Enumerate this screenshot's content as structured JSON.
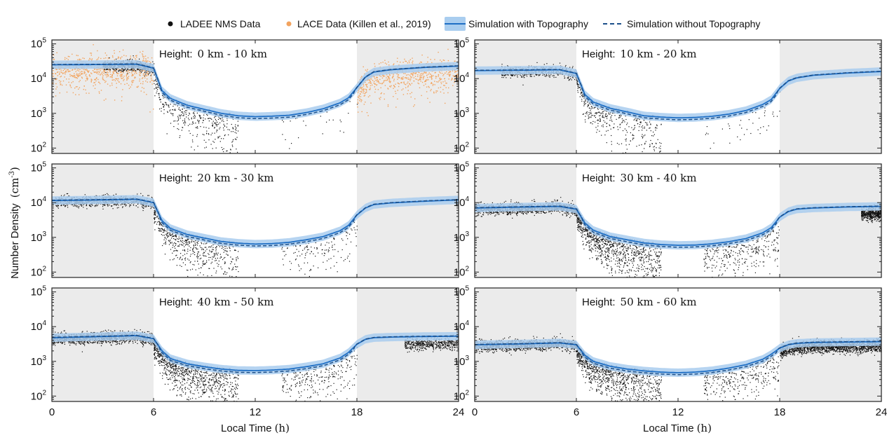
{
  "chart_data": {
    "type": "scatter+line",
    "legend": [
      {
        "name": "LADEE NMS Data",
        "kind": "marker",
        "color": "#111111"
      },
      {
        "name": "LACE Data (Killen et al., 2019)",
        "kind": "marker",
        "color": "#f2a35e"
      },
      {
        "name": "Simulation with Topography",
        "kind": "band+line",
        "color": "#1f6fc5",
        "band_color": "#a9cdef"
      },
      {
        "name": "Simulation without Topography",
        "kind": "dashed-line",
        "color": "#1b4f8a"
      }
    ],
    "xlabel_main": "Local Time",
    "xlabel_unit": "(h)",
    "xticks": [
      "0",
      "6",
      "12",
      "18",
      "24"
    ],
    "xlim": [
      0,
      24
    ],
    "ylabel_main": "Number Density",
    "ylabel_unit": "(cm",
    "ylabel_exp": "-3",
    "ylabel_close": ")",
    "yscale": "log",
    "ylim": [
      70,
      130000
    ],
    "yticks": [
      {
        "base": "10",
        "exp": "2"
      },
      {
        "base": "10",
        "exp": "3"
      },
      {
        "base": "10",
        "exp": "4"
      },
      {
        "base": "10",
        "exp": "5"
      }
    ],
    "night_shading": [
      [
        0,
        6
      ],
      [
        18,
        24
      ]
    ],
    "shading_color": "#ebebeb",
    "panel_title_prefix": "Height:",
    "panels": [
      {
        "id": "0-10",
        "range": "0 km - 10 km",
        "sim_with": [
          [
            0,
            25000
          ],
          [
            3,
            25500
          ],
          [
            5,
            26000
          ],
          [
            6,
            20000
          ],
          [
            6.5,
            4500
          ],
          [
            7,
            2700
          ],
          [
            8,
            1700
          ],
          [
            9,
            1300
          ],
          [
            10,
            1000
          ],
          [
            11,
            850
          ],
          [
            12,
            800
          ],
          [
            13,
            830
          ],
          [
            14,
            880
          ],
          [
            15,
            1050
          ],
          [
            16,
            1350
          ],
          [
            17,
            2000
          ],
          [
            17.5,
            2800
          ],
          [
            18,
            5500
          ],
          [
            18.5,
            11000
          ],
          [
            19,
            15500
          ],
          [
            20,
            18000
          ],
          [
            22,
            21000
          ],
          [
            24,
            23000
          ]
        ],
        "nms_range": [
          3,
          6
        ],
        "lace": true
      },
      {
        "id": "10-20",
        "range": "10 km - 20 km",
        "sim_with": [
          [
            0,
            17000
          ],
          [
            3,
            17500
          ],
          [
            5,
            18000
          ],
          [
            6,
            14000
          ],
          [
            6.5,
            3500
          ],
          [
            7,
            2100
          ],
          [
            8,
            1400
          ],
          [
            9,
            1100
          ],
          [
            10,
            850
          ],
          [
            11,
            780
          ],
          [
            12,
            740
          ],
          [
            13,
            760
          ],
          [
            14,
            820
          ],
          [
            15,
            950
          ],
          [
            16,
            1200
          ],
          [
            17,
            1800
          ],
          [
            17.5,
            2500
          ],
          [
            18,
            5200
          ],
          [
            18.5,
            8500
          ],
          [
            19,
            10500
          ],
          [
            20,
            12500
          ],
          [
            22,
            14500
          ],
          [
            24,
            16000
          ]
        ],
        "nms_range": [
          1.5,
          6
        ],
        "lace": false
      },
      {
        "id": "20-30",
        "range": "20 km - 30 km",
        "sim_with": [
          [
            0,
            11500
          ],
          [
            3,
            12000
          ],
          [
            5,
            12500
          ],
          [
            6,
            10000
          ],
          [
            6.5,
            3000
          ],
          [
            7,
            1800
          ],
          [
            8,
            1200
          ],
          [
            9,
            950
          ],
          [
            10,
            760
          ],
          [
            11,
            680
          ],
          [
            12,
            640
          ],
          [
            13,
            660
          ],
          [
            14,
            720
          ],
          [
            15,
            850
          ],
          [
            16,
            1050
          ],
          [
            17,
            1550
          ],
          [
            17.5,
            2200
          ],
          [
            18,
            4400
          ],
          [
            18.5,
            7000
          ],
          [
            19,
            8800
          ],
          [
            20,
            9800
          ],
          [
            22,
            11000
          ],
          [
            24,
            12000
          ]
        ],
        "nms_range": [
          0.2,
          6
        ],
        "lace": false
      },
      {
        "id": "30-40",
        "range": "30 km - 40 km",
        "sim_with": [
          [
            0,
            7000
          ],
          [
            3,
            7500
          ],
          [
            5,
            7800
          ],
          [
            6,
            6500
          ],
          [
            6.5,
            2600
          ],
          [
            7,
            1600
          ],
          [
            8,
            1050
          ],
          [
            9,
            850
          ],
          [
            10,
            690
          ],
          [
            11,
            620
          ],
          [
            12,
            590
          ],
          [
            13,
            600
          ],
          [
            14,
            650
          ],
          [
            15,
            750
          ],
          [
            16,
            920
          ],
          [
            17,
            1350
          ],
          [
            17.5,
            1900
          ],
          [
            18,
            3800
          ],
          [
            18.5,
            5500
          ],
          [
            19,
            6500
          ],
          [
            20,
            7000
          ],
          [
            22,
            7500
          ],
          [
            24,
            7800
          ]
        ],
        "nms_range": [
          0.1,
          6
        ],
        "lace": false
      },
      {
        "id": "40-50",
        "range": "40 km - 50 km",
        "sim_with": [
          [
            0,
            4800
          ],
          [
            3,
            5200
          ],
          [
            5,
            5500
          ],
          [
            6,
            4500
          ],
          [
            6.5,
            2000
          ],
          [
            7,
            1200
          ],
          [
            8,
            850
          ],
          [
            9,
            700
          ],
          [
            10,
            600
          ],
          [
            11,
            550
          ],
          [
            12,
            540
          ],
          [
            13,
            560
          ],
          [
            14,
            600
          ],
          [
            15,
            700
          ],
          [
            16,
            850
          ],
          [
            17,
            1250
          ],
          [
            17.5,
            1800
          ],
          [
            18,
            3100
          ],
          [
            18.5,
            4300
          ],
          [
            19,
            4800
          ],
          [
            20,
            5000
          ],
          [
            22,
            5200
          ],
          [
            24,
            5300
          ]
        ],
        "nms_range": [
          0,
          6
        ],
        "lace": false
      },
      {
        "id": "50-60",
        "range": "50 km - 60 km",
        "sim_with": [
          [
            0,
            3000
          ],
          [
            3,
            3200
          ],
          [
            5,
            3400
          ],
          [
            6,
            3000
          ],
          [
            6.5,
            1500
          ],
          [
            7,
            1000
          ],
          [
            8,
            720
          ],
          [
            9,
            600
          ],
          [
            10,
            530
          ],
          [
            11,
            490
          ],
          [
            12,
            470
          ],
          [
            13,
            490
          ],
          [
            14,
            540
          ],
          [
            15,
            640
          ],
          [
            16,
            800
          ],
          [
            17,
            1150
          ],
          [
            17.5,
            1600
          ],
          [
            18,
            2400
          ],
          [
            18.5,
            3000
          ],
          [
            19,
            3300
          ],
          [
            20,
            3500
          ],
          [
            22,
            3600
          ],
          [
            24,
            3700
          ]
        ],
        "nms_range": [
          0,
          6
        ],
        "lace": false
      }
    ]
  }
}
